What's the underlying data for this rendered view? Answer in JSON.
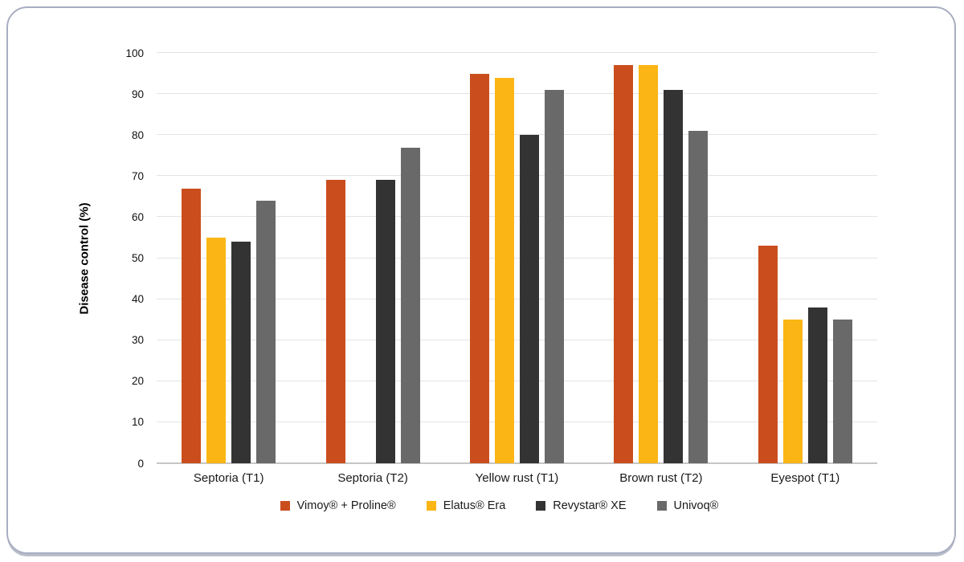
{
  "chart_data": {
    "type": "bar",
    "ylabel": "Disease control (%)",
    "ylim": [
      0,
      100
    ],
    "yticks": [
      0,
      10,
      20,
      30,
      40,
      50,
      60,
      70,
      80,
      90,
      100
    ],
    "grid": "horizontal",
    "legend_position": "bottom",
    "categories": [
      "Septoria (T1)",
      "Septoria (T2)",
      "Yellow rust (T1)",
      "Brown rust (T2)",
      "Eyespot (T1)"
    ],
    "series": [
      {
        "name": "Vimoy® + Proline®",
        "color": "#CA4E1D",
        "values": [
          67,
          69,
          95,
          97,
          53
        ]
      },
      {
        "name": "Elatus® Era",
        "color": "#FBB615",
        "values": [
          55,
          null,
          94,
          97,
          35
        ]
      },
      {
        "name": "Revystar® XE",
        "color": "#333333",
        "values": [
          54,
          69,
          80,
          91,
          38
        ]
      },
      {
        "name": "Univoq®",
        "color": "#696969",
        "values": [
          64,
          77,
          91,
          81,
          35
        ]
      }
    ]
  }
}
